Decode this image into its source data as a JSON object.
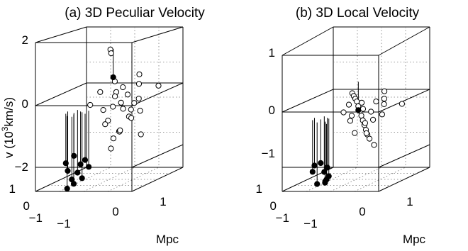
{
  "panels": [
    {
      "title": "(a) 3D Peculiar Velocity",
      "ylabel": "v  (10",
      "ylabel_sup": "3",
      "ylabel_tail": "km/s)",
      "xlabel": "Mpc",
      "z_ticks": [
        "2",
        "0",
        "−2"
      ],
      "x_ticks": [
        "−1",
        "0",
        "1"
      ],
      "y_ticks": [
        "1",
        "0",
        "−1"
      ]
    },
    {
      "title": "(b) 3D Local Velocity",
      "ylabel": "",
      "xlabel": "Mpc",
      "z_ticks": [
        "1",
        "0",
        "−1"
      ],
      "x_ticks": [
        "−1",
        "0",
        "1"
      ],
      "y_ticks": [
        "1",
        "0",
        "−1"
      ]
    }
  ],
  "chart_data": [
    {
      "type": "scatter",
      "title": "(a) 3D Peculiar Velocity",
      "zlabel": "v (10^3 km/s)",
      "xlabel": "Mpc",
      "zlim": [
        -2,
        2
      ],
      "xlim": [
        -1.5,
        1.5
      ],
      "ylim": [
        -1.5,
        1.5
      ],
      "grid": true,
      "series": [
        {
          "marker": "open-circle",
          "points": [
            {
              "x": -0.5,
              "y": 0.6,
              "z": 1.65
            },
            {
              "x": -0.45,
              "y": 0.55,
              "z": 1.55
            },
            {
              "x": -0.1,
              "y": 0.1,
              "z": 0.8
            },
            {
              "x": 0.1,
              "y": 0.2,
              "z": 0.6
            },
            {
              "x": 0.0,
              "y": 0.0,
              "z": 0.5
            },
            {
              "x": 0.3,
              "y": 0.1,
              "z": 0.4
            },
            {
              "x": -0.2,
              "y": 0.3,
              "z": 0.3
            },
            {
              "x": 0.2,
              "y": -0.1,
              "z": 0.2
            },
            {
              "x": 0.4,
              "y": 0.3,
              "z": 0.1
            },
            {
              "x": -0.3,
              "y": -0.2,
              "z": 0.0
            },
            {
              "x": 0.0,
              "y": 0.4,
              "z": -0.1
            },
            {
              "x": 0.5,
              "y": -0.2,
              "z": -0.2
            },
            {
              "x": -0.1,
              "y": -0.3,
              "z": -0.3
            },
            {
              "x": 0.2,
              "y": 0.5,
              "z": -0.4
            },
            {
              "x": -0.4,
              "y": 0.1,
              "z": -0.5
            },
            {
              "x": 0.3,
              "y": -0.4,
              "z": -0.6
            },
            {
              "x": 0.1,
              "y": 0.0,
              "z": -0.7
            },
            {
              "x": -0.2,
              "y": 0.6,
              "z": -0.8
            },
            {
              "x": 0.6,
              "y": 0.2,
              "z": 0.7
            },
            {
              "x": 0.7,
              "y": 0.0,
              "z": 0.3
            },
            {
              "x": -0.6,
              "y": -0.4,
              "z": 0.2
            },
            {
              "x": 0.4,
              "y": 0.6,
              "z": 0.9
            },
            {
              "x": 0.9,
              "y": -0.3,
              "z": 0.0
            },
            {
              "x": -0.3,
              "y": 0.4,
              "z": -1.0
            },
            {
              "x": 0.1,
              "y": -0.5,
              "z": -1.1
            },
            {
              "x": 0.5,
              "y": 0.5,
              "z": -0.9
            },
            {
              "x": 1.1,
              "y": 0.4,
              "z": 0.6
            },
            {
              "x": -0.5,
              "y": 0.0,
              "z": 0.5
            },
            {
              "x": 0.3,
              "y": 0.3,
              "z": -0.1
            },
            {
              "x": 0.0,
              "y": -0.2,
              "z": 0.1
            }
          ]
        },
        {
          "marker": "filled-circle",
          "points": [
            {
              "x": -1.0,
              "y": -0.6,
              "z": -1.3
            },
            {
              "x": -0.9,
              "y": -0.4,
              "z": -1.6
            },
            {
              "x": -1.1,
              "y": -0.2,
              "z": -1.9
            },
            {
              "x": -0.8,
              "y": -0.5,
              "z": -2.0
            },
            {
              "x": -1.2,
              "y": -0.7,
              "z": -1.5
            },
            {
              "x": -0.7,
              "y": -0.3,
              "z": -1.7
            },
            {
              "x": -0.9,
              "y": -0.8,
              "z": -2.1
            },
            {
              "x": -1.3,
              "y": -0.4,
              "z": -1.8
            },
            {
              "x": -0.6,
              "y": -0.7,
              "z": -1.4
            },
            {
              "x": -1.0,
              "y": -1.0,
              "z": -2.2
            },
            {
              "x": -0.8,
              "y": -1.1,
              "z": -1.9
            },
            {
              "x": -0.2,
              "y": 0.2,
              "z": 0.9
            }
          ]
        }
      ]
    },
    {
      "type": "scatter",
      "title": "(b) 3D Local Velocity",
      "zlabel": "",
      "xlabel": "Mpc",
      "zlim": [
        -1.5,
        1.5
      ],
      "xlim": [
        -1.5,
        1.5
      ],
      "ylim": [
        -1.5,
        1.5
      ],
      "grid": true,
      "series": [
        {
          "marker": "open-circle",
          "points": [
            {
              "x": -0.6,
              "y": 0.5,
              "z": 0.45
            },
            {
              "x": -0.5,
              "y": 0.4,
              "z": 0.4
            },
            {
              "x": -0.4,
              "y": 0.3,
              "z": 0.35
            },
            {
              "x": -0.3,
              "y": 0.2,
              "z": 0.3
            },
            {
              "x": -0.2,
              "y": 0.1,
              "z": 0.2
            },
            {
              "x": -0.1,
              "y": 0.0,
              "z": 0.1
            },
            {
              "x": 0.0,
              "y": -0.1,
              "z": 0.0
            },
            {
              "x": 0.1,
              "y": -0.2,
              "z": -0.1
            },
            {
              "x": 0.2,
              "y": -0.3,
              "z": -0.2
            },
            {
              "x": 0.3,
              "y": -0.4,
              "z": -0.3
            },
            {
              "x": 0.4,
              "y": -0.5,
              "z": -0.4
            },
            {
              "x": -0.5,
              "y": -0.2,
              "z": 0.1
            },
            {
              "x": -0.3,
              "y": -0.1,
              "z": 0.0
            },
            {
              "x": 0.3,
              "y": 0.2,
              "z": 0.3
            },
            {
              "x": 0.5,
              "y": 0.3,
              "z": 0.35
            },
            {
              "x": 0.6,
              "y": 0.1,
              "z": 0.25
            },
            {
              "x": 0.1,
              "y": 0.4,
              "z": -0.2
            },
            {
              "x": -0.2,
              "y": 0.5,
              "z": -0.3
            },
            {
              "x": 0.0,
              "y": 0.2,
              "z": -0.5
            },
            {
              "x": 0.2,
              "y": 0.0,
              "z": -0.6
            },
            {
              "x": -0.1,
              "y": -0.3,
              "z": -0.4
            },
            {
              "x": 0.4,
              "y": 0.5,
              "z": 0.5
            },
            {
              "x": -0.4,
              "y": 0.0,
              "z": -0.15
            },
            {
              "x": 0.7,
              "y": -0.2,
              "z": 0.05
            },
            {
              "x": 1.0,
              "y": 0.4,
              "z": 0.2
            },
            {
              "x": 0.5,
              "y": -0.3,
              "z": -0.7
            },
            {
              "x": -0.6,
              "y": 0.3,
              "z": 0.2
            },
            {
              "x": 0.0,
              "y": 0.0,
              "z": 0.15
            },
            {
              "x": 0.3,
              "y": -0.1,
              "z": 0.1
            },
            {
              "x": -0.2,
              "y": 0.3,
              "z": 0.25
            }
          ]
        },
        {
          "marker": "filled-circle",
          "points": [
            {
              "x": -1.0,
              "y": -0.6,
              "z": -1.1
            },
            {
              "x": -0.9,
              "y": -0.4,
              "z": -1.25
            },
            {
              "x": -1.1,
              "y": -0.2,
              "z": -1.4
            },
            {
              "x": -0.8,
              "y": -0.5,
              "z": -1.45
            },
            {
              "x": -1.2,
              "y": -0.7,
              "z": -1.3
            },
            {
              "x": -0.7,
              "y": -0.9,
              "z": -1.5
            },
            {
              "x": -0.9,
              "y": -1.0,
              "z": -1.55
            },
            {
              "x": -0.6,
              "y": -1.1,
              "z": -1.5
            },
            {
              "x": -0.5,
              "y": -1.2,
              "z": -1.4
            },
            {
              "x": -1.3,
              "y": -0.4,
              "z": -1.2
            },
            {
              "x": -0.2,
              "y": 0.1,
              "z": 0.1
            }
          ]
        }
      ]
    }
  ]
}
